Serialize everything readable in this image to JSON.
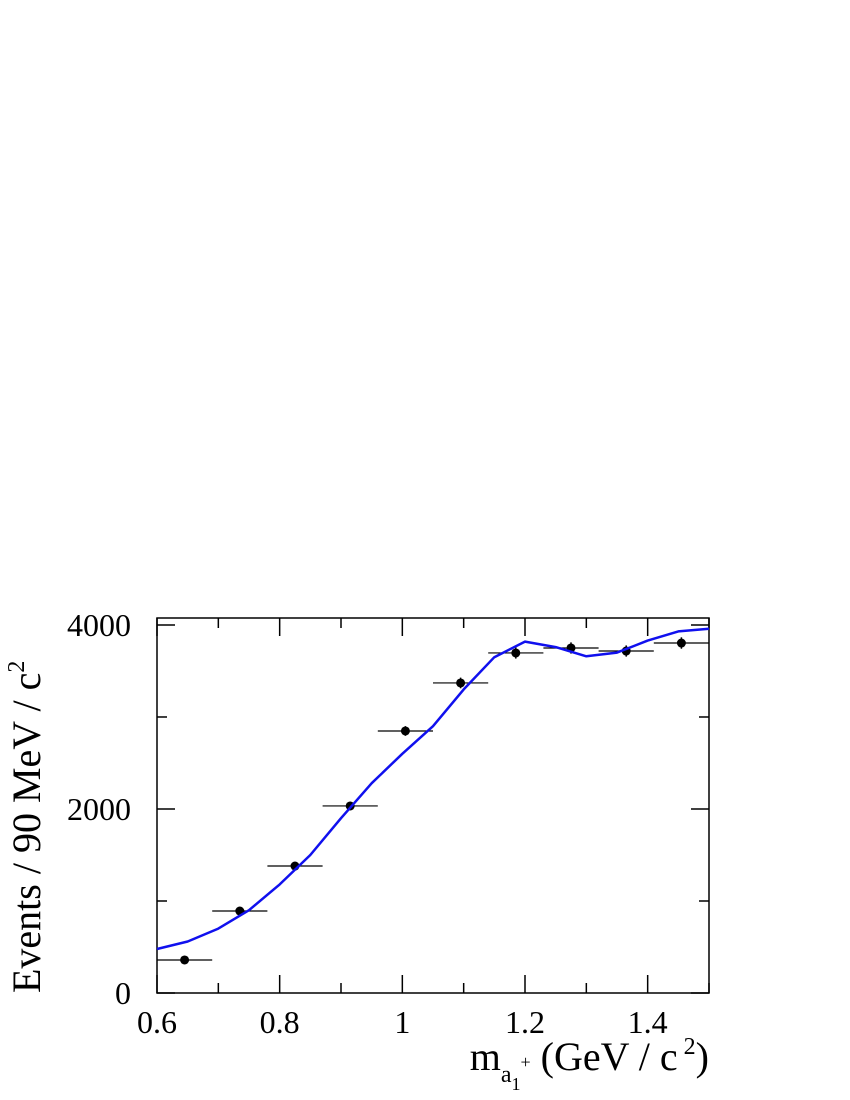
{
  "chart_data": {
    "type": "scatter",
    "x": [
      0.645,
      0.735,
      0.825,
      0.915,
      1.005,
      1.095,
      1.185,
      1.275,
      1.365,
      1.455
    ],
    "xerr": 0.045,
    "series": [
      {
        "type": "scatter",
        "color": "#000000",
        "values": [
          359,
          891,
          1380,
          2033,
          2848,
          3370,
          3696,
          3750,
          3717,
          3804
        ],
        "errors": [
          19,
          30,
          37,
          45,
          53,
          58,
          61,
          61,
          61,
          62
        ]
      },
      {
        "type": "line",
        "color": "#1010ee",
        "x": [
          0.6,
          0.65,
          0.7,
          0.75,
          0.8,
          0.85,
          0.9,
          0.95,
          1.0,
          1.05,
          1.1,
          1.15,
          1.2,
          1.25,
          1.3,
          1.35,
          1.4,
          1.45,
          1.5
        ],
        "values": [
          478,
          560,
          700,
          900,
          1180,
          1500,
          1900,
          2280,
          2600,
          2900,
          3300,
          3650,
          3820,
          3760,
          3660,
          3700,
          3830,
          3930,
          3960
        ]
      }
    ],
    "xlim": [
      0.6,
      1.5
    ],
    "ylim": [
      0,
      4076
    ],
    "xticks": [
      0.6,
      0.8,
      1,
      1.2,
      1.4
    ],
    "xminor_ticks": [
      0.7,
      0.9,
      1.1,
      1.3,
      1.5
    ],
    "yticks": [
      0,
      2000,
      4000
    ],
    "yminor_ticks": [
      1000,
      3000
    ],
    "ylabel": [
      {
        "text": "Events / 90 MeV / c",
        "pos": "base"
      },
      {
        "text": "2",
        "pos": "sup"
      }
    ],
    "xlabel": [
      {
        "text": "m",
        "pos": "base"
      },
      {
        "text": "a",
        "pos": "sub"
      },
      {
        "text": "1",
        "pos": "subsub"
      },
      {
        "text": "+",
        "pos": "subsup"
      },
      {
        "text": " (GeV / c",
        "pos": "base"
      },
      {
        "text": " 2",
        "pos": "sup"
      },
      {
        "text": ")",
        "pos": "base"
      }
    ]
  }
}
